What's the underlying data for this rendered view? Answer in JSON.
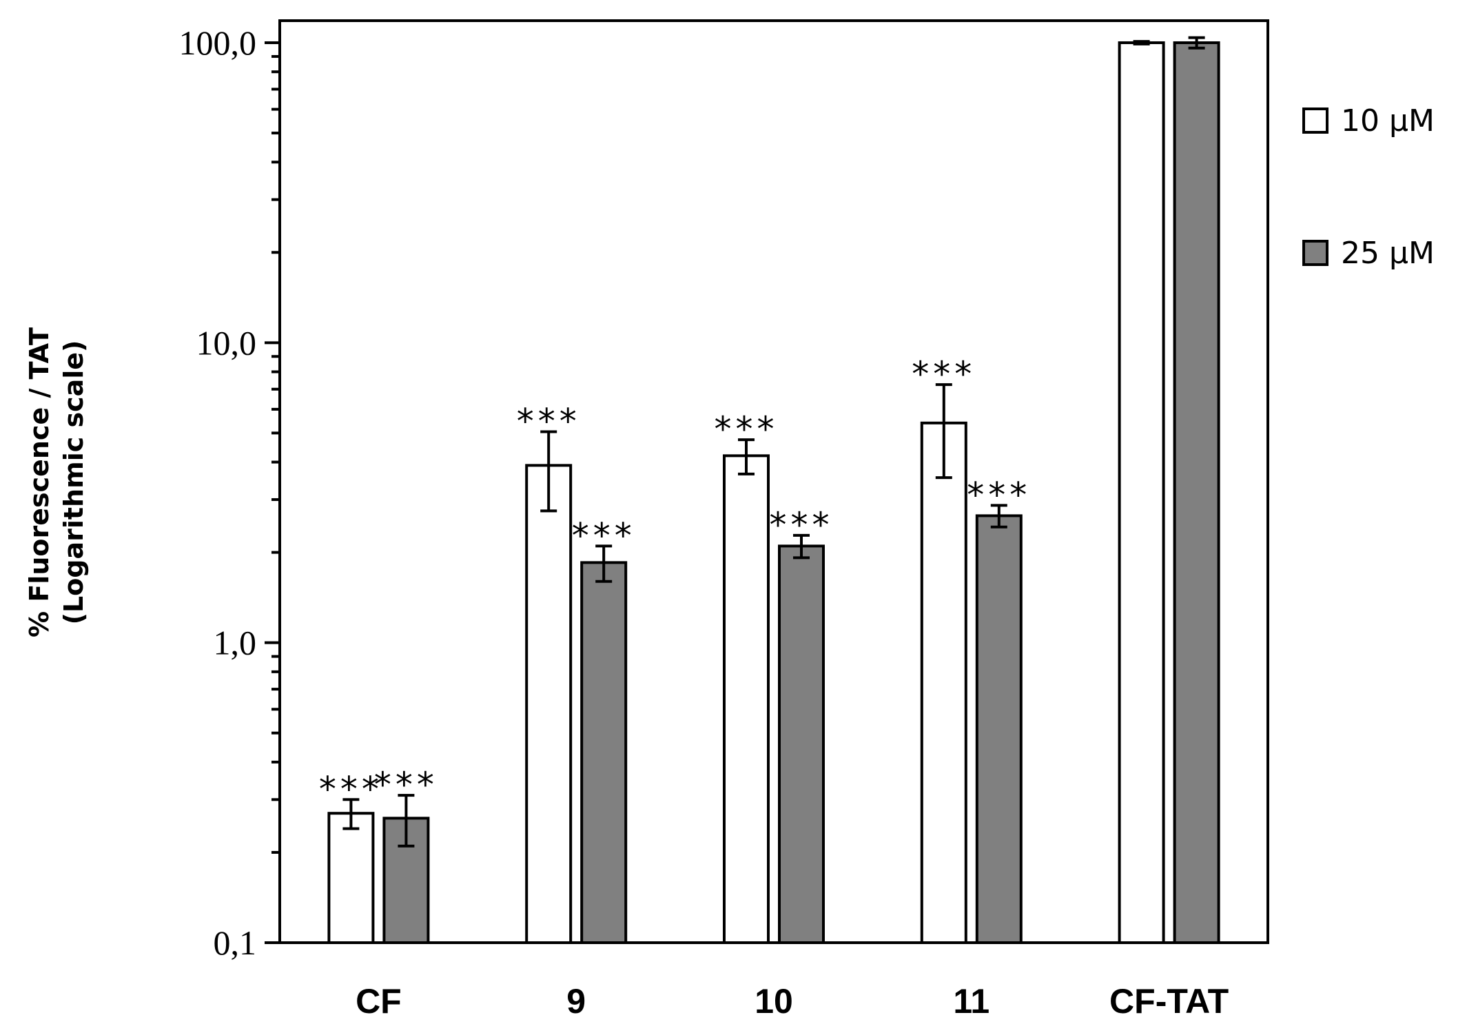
{
  "chart_data": {
    "type": "bar",
    "title": "",
    "xlabel": "",
    "ylabel_line1": "% Fluorescence  / TAT",
    "ylabel_line2": "(Logarithmic scale)",
    "yscale": "log",
    "ylim": [
      0.1,
      100
    ],
    "yticks": [
      0.1,
      1,
      10,
      100
    ],
    "ytick_labels": [
      "0,1",
      "1,0",
      "10,0",
      "100,0"
    ],
    "categories": [
      "CF",
      "9",
      "10",
      "11",
      "CF-TAT"
    ],
    "series": [
      {
        "name": "10 µM",
        "color": "#ffffff",
        "values": [
          0.27,
          3.9,
          4.2,
          5.4,
          100
        ],
        "errors": [
          0.03,
          1.15,
          0.55,
          1.85,
          1.0
        ],
        "significance": [
          "***",
          "***",
          "***",
          "***",
          ""
        ]
      },
      {
        "name": "25 µM",
        "color": "#808080",
        "values": [
          0.26,
          1.85,
          2.1,
          2.65,
          100
        ],
        "errors": [
          0.05,
          0.25,
          0.18,
          0.22,
          4.0
        ],
        "significance": [
          "***",
          "***",
          "***",
          "***",
          ""
        ]
      }
    ],
    "legend_position": "right"
  }
}
